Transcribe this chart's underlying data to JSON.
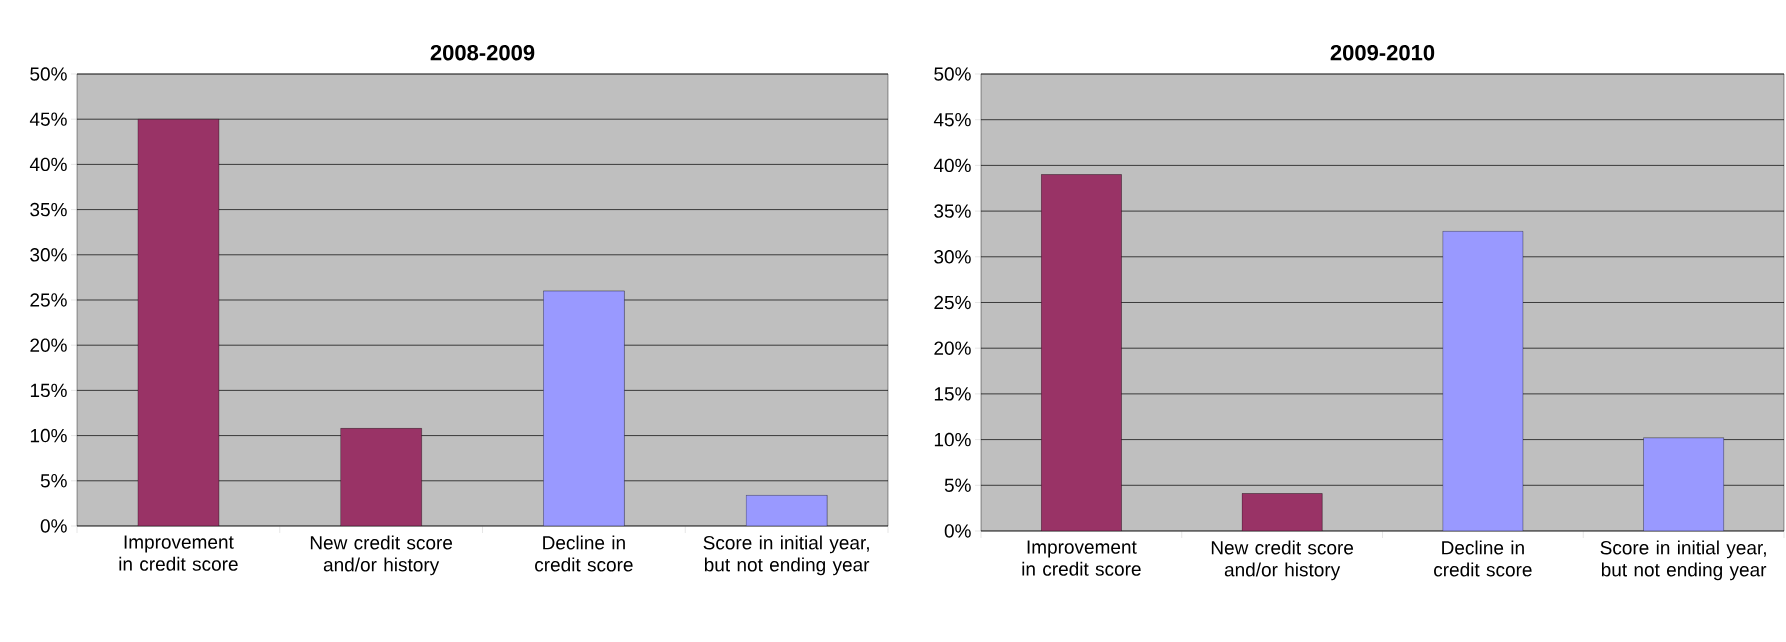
{
  "chart_data": [
    {
      "type": "bar",
      "title": "2008-2009",
      "categories": [
        "Improvement in credit score",
        "New credit score and/or history",
        "Decline in credit score",
        "Score in initial year, but not ending year"
      ],
      "values": [
        45,
        10.8,
        26,
        3.4
      ],
      "colors": [
        "#993366",
        "#993366",
        "#9999ff",
        "#9999ff"
      ],
      "ylim": [
        0,
        50
      ],
      "yticks": [
        {
          "value": 0,
          "label": "0%"
        },
        {
          "value": 5,
          "label": "5%"
        },
        {
          "value": 10,
          "label": "10%"
        },
        {
          "value": 15,
          "label": "15%"
        },
        {
          "value": 20,
          "label": "20%"
        },
        {
          "value": 25,
          "label": "25%"
        },
        {
          "value": 30,
          "label": "30%"
        },
        {
          "value": 35,
          "label": "35%"
        },
        {
          "value": 40,
          "label": "40%"
        },
        {
          "value": 45,
          "label": "45%"
        },
        {
          "value": 50,
          "label": "50%"
        }
      ],
      "grid": "y"
    },
    {
      "type": "bar",
      "title": "2009-2010",
      "categories": [
        "Improvement in credit score",
        "New credit score and/or history",
        "Decline in credit score",
        "Score in initial year, but not ending year"
      ],
      "values": [
        39,
        4.1,
        32.8,
        10.2
      ],
      "colors": [
        "#993366",
        "#993366",
        "#9999ff",
        "#9999ff"
      ],
      "ylim": [
        0,
        50
      ],
      "yticks": [
        {
          "value": 0,
          "label": "0%"
        },
        {
          "value": 5,
          "label": "5%"
        },
        {
          "value": 10,
          "label": "10%"
        },
        {
          "value": 15,
          "label": "15%"
        },
        {
          "value": 20,
          "label": "20%"
        },
        {
          "value": 25,
          "label": "25%"
        },
        {
          "value": 30,
          "label": "30%"
        },
        {
          "value": 35,
          "label": "35%"
        },
        {
          "value": 40,
          "label": "40%"
        },
        {
          "value": 45,
          "label": "45%"
        },
        {
          "value": 50,
          "label": "50%"
        }
      ],
      "grid": "y"
    }
  ]
}
